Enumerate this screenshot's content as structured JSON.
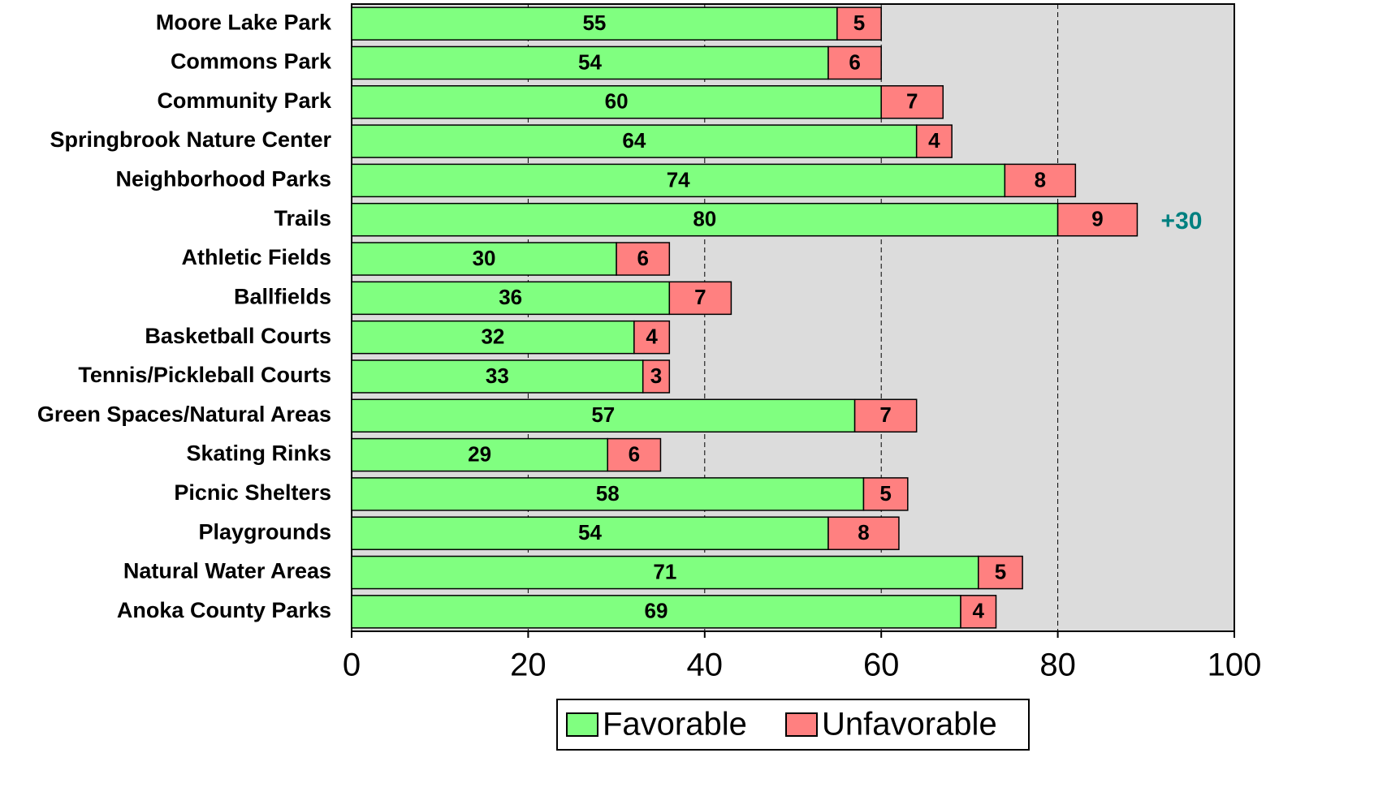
{
  "chart_data": {
    "type": "stacked-bar-horizontal",
    "categories": [
      "Moore Lake Park",
      "Commons Park",
      "Community Park",
      "Springbrook Nature Center",
      "Neighborhood Parks",
      "Trails",
      "Athletic Fields",
      "Ballfields",
      "Basketball Courts",
      "Tennis/Pickleball Courts",
      "Green Spaces/Natural Areas",
      "Skating Rinks",
      "Picnic Shelters",
      "Playgrounds",
      "Natural Water Areas",
      "Anoka County Parks"
    ],
    "series": [
      {
        "name": "Favorable",
        "color": "#80ff80",
        "values": [
          55,
          54,
          60,
          64,
          74,
          80,
          30,
          36,
          32,
          33,
          57,
          29,
          58,
          54,
          71,
          69
        ]
      },
      {
        "name": "Unfavorable",
        "color": "#ff8080",
        "values": [
          5,
          6,
          7,
          4,
          8,
          9,
          6,
          7,
          4,
          3,
          7,
          6,
          5,
          8,
          5,
          4
        ]
      }
    ],
    "xlim": [
      0,
      100
    ],
    "xticks": [
      0,
      20,
      40,
      60,
      80,
      100
    ],
    "grid": true,
    "annotation": "+30",
    "legend": "bottom"
  }
}
